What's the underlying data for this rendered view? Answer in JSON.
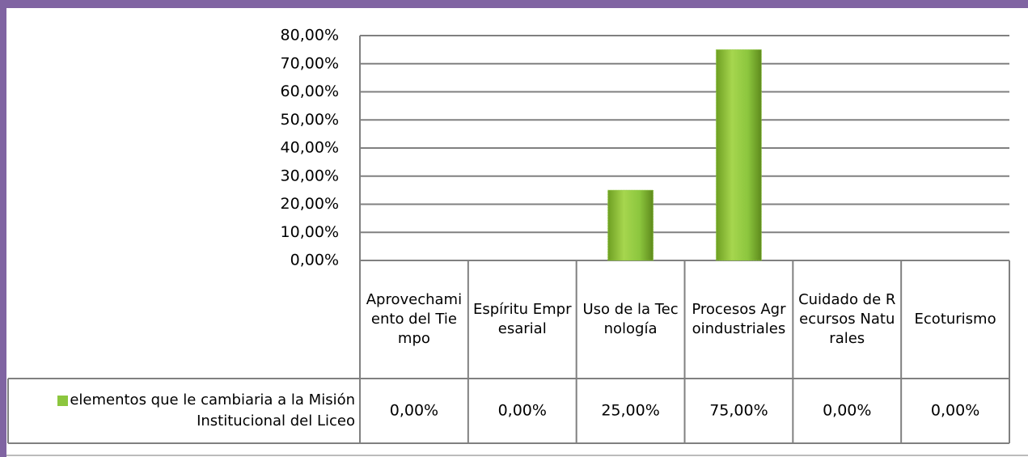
{
  "chart_data": {
    "type": "bar",
    "categories": [
      "Aprovechamiento del Tiempo",
      "Espíritu Empresarial",
      "Uso de la Tecnología",
      "Procesos Agroindustriales",
      "Cuidado de Recursos Naturales",
      "Ecoturismo"
    ],
    "series": [
      {
        "name": "elementos que le cambiaria a la Misión Institucional del Liceo",
        "color": "#8cc63e",
        "values": [
          0,
          0,
          25,
          75,
          0,
          0
        ],
        "value_labels": [
          "0,00%",
          "0,00%",
          "25,00%",
          "75,00%",
          "0,00%",
          "0,00%"
        ]
      }
    ],
    "ylim": [
      0,
      80
    ],
    "yticks": [
      {
        "value": 0,
        "label": "0,00%"
      },
      {
        "value": 10,
        "label": "10,00%"
      },
      {
        "value": 20,
        "label": "20,00%"
      },
      {
        "value": 30,
        "label": "30,00%"
      },
      {
        "value": 40,
        "label": "40,00%"
      },
      {
        "value": 50,
        "label": "50,00%"
      },
      {
        "value": 60,
        "label": "60,00%"
      },
      {
        "value": 70,
        "label": "70,00%"
      },
      {
        "value": 80,
        "label": "80,00%"
      }
    ],
    "grid": true
  }
}
